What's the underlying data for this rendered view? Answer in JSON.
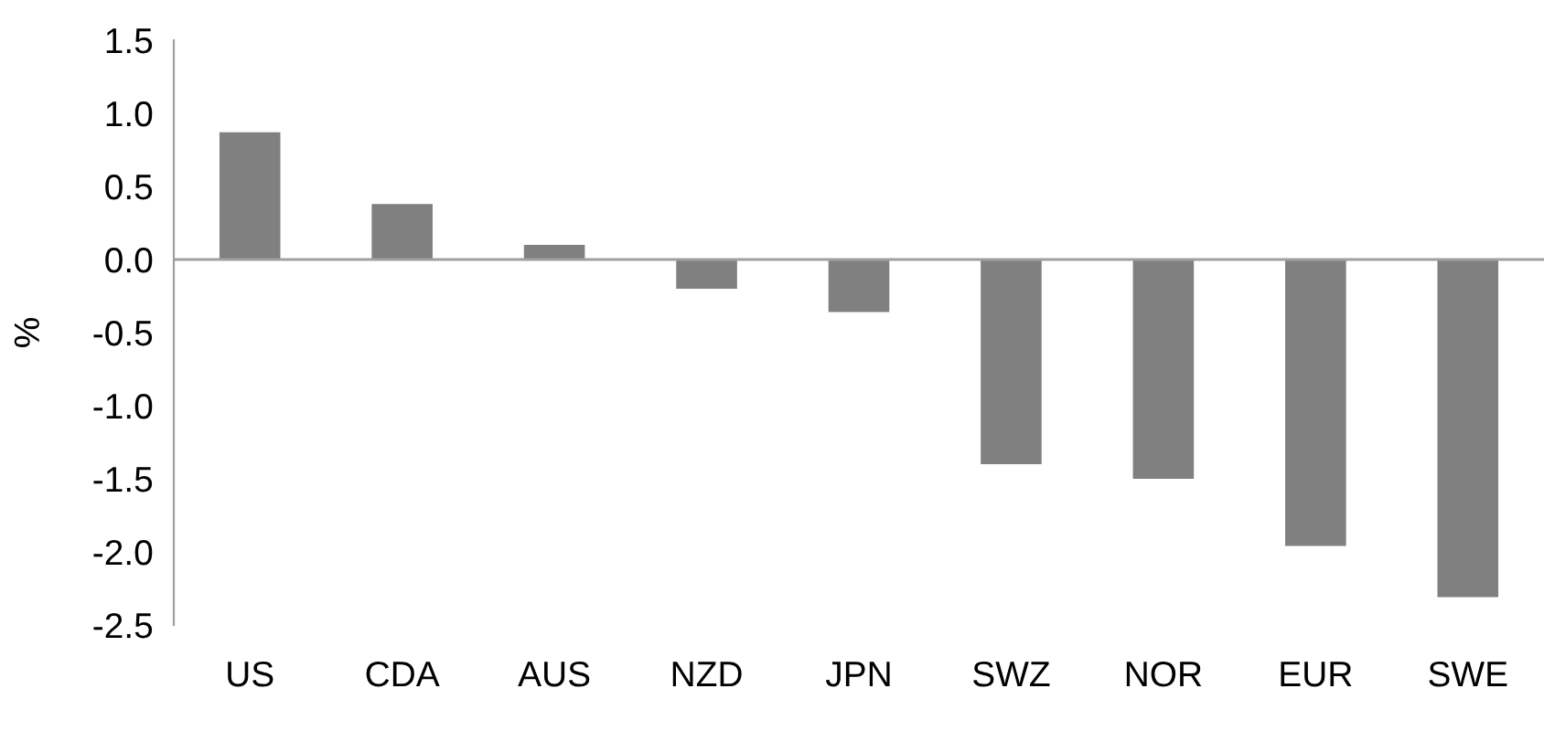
{
  "chart_data": {
    "type": "bar",
    "ylabel": "%",
    "categories": [
      "US",
      "CDA",
      "AUS",
      "NZD",
      "JPN",
      "SWZ",
      "NOR",
      "EUR",
      "SWE"
    ],
    "values": [
      0.87,
      0.38,
      0.1,
      -0.2,
      -0.36,
      -1.4,
      -1.5,
      -1.96,
      -2.31
    ],
    "color": "#808080",
    "ylim": [
      -2.5,
      1.5
    ],
    "yticks": [
      {
        "value": -2.5,
        "label": "-2.5"
      },
      {
        "value": -2.0,
        "label": "-2.0"
      },
      {
        "value": -1.5,
        "label": "-1.5"
      },
      {
        "value": -1.0,
        "label": "-1.0"
      },
      {
        "value": -0.5,
        "label": "-0.5"
      },
      {
        "value": 0.0,
        "label": "0.0"
      },
      {
        "value": 0.5,
        "label": "0.5"
      },
      {
        "value": 1.0,
        "label": "1.0"
      },
      {
        "value": 1.5,
        "label": "1.5"
      }
    ],
    "ref_lines": [
      {
        "axis": "y",
        "value": 0,
        "color": "#a0a0a0"
      }
    ]
  }
}
